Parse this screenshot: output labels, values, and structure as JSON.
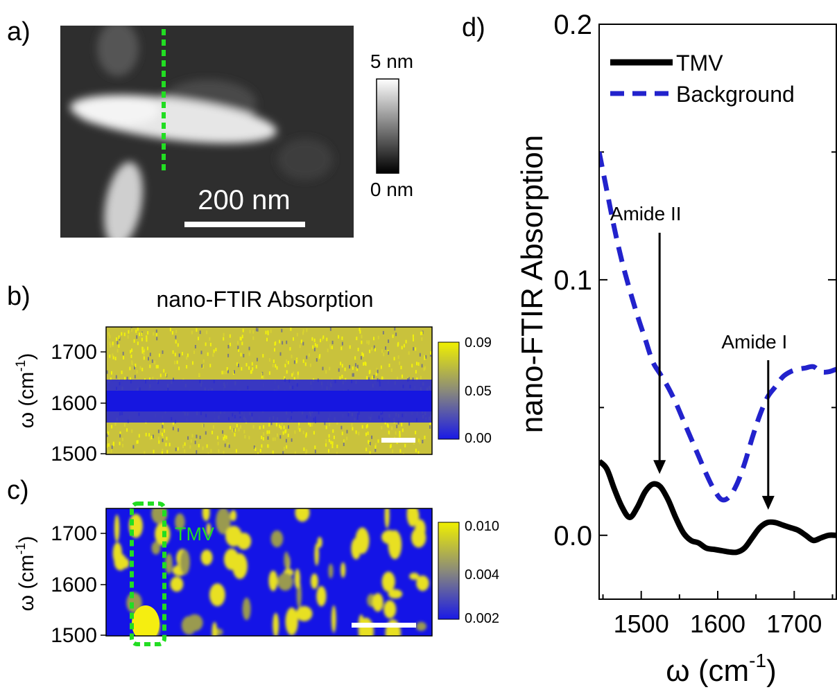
{
  "panel_labels": {
    "a": "a)",
    "b": "b)",
    "c": "c)",
    "d": "d)"
  },
  "panel_a": {
    "scalebar_label": "200 nm",
    "colorbar_top": "5 nm",
    "colorbar_bottom": "0 nm",
    "linecut_color": "#22dd22"
  },
  "panel_b": {
    "title": "nano-FTIR Absorption",
    "ylabel": "ω (cm",
    "ylabel_sup": "-1",
    "ylabel_close": ")",
    "yticks": [
      "1700",
      "1600",
      "1500"
    ],
    "colorbar_ticks": [
      "0.09",
      "0.05",
      "0.00"
    ]
  },
  "panel_c": {
    "ylabel": "ω (cm",
    "ylabel_sup": "-1",
    "ylabel_close": ")",
    "yticks": [
      "1700",
      "1600",
      "1500"
    ],
    "colorbar_ticks": [
      "0.010",
      "0.004",
      "0.002"
    ],
    "region_label": "TMV"
  },
  "colors": {
    "colormap_low": "#1a1ae6",
    "colormap_high": "#f0f000",
    "tmv_line": "#000000",
    "background_line": "#2222cc",
    "highlight": "#22dd22"
  },
  "chart_data": {
    "type": "line",
    "title": "",
    "xlabel": "ω (cm",
    "xlabel_sup": "-1",
    "xlabel_close": ")",
    "ylabel": "nano-FTIR Absorption",
    "xlim": [
      1445,
      1755
    ],
    "ylim": [
      -0.025,
      0.2
    ],
    "xticks": [
      "1500",
      "1600",
      "1700"
    ],
    "yticks": [
      "0.2",
      "0.1",
      "0.0"
    ],
    "legend_position": "top-left",
    "series": [
      {
        "name": "TMV",
        "x": [
          1445,
          1455,
          1465,
          1475,
          1485,
          1495,
          1505,
          1515,
          1525,
          1535,
          1545,
          1555,
          1565,
          1575,
          1585,
          1595,
          1605,
          1615,
          1625,
          1635,
          1645,
          1655,
          1665,
          1675,
          1685,
          1695,
          1705,
          1715,
          1725,
          1735,
          1745,
          1755
        ],
        "y": [
          0.029,
          0.026,
          0.018,
          0.011,
          0.007,
          0.011,
          0.017,
          0.02,
          0.019,
          0.014,
          0.007,
          0.001,
          -0.002,
          -0.003,
          -0.005,
          -0.0055,
          -0.006,
          -0.0065,
          -0.0066,
          -0.005,
          -0.001,
          0.003,
          0.005,
          0.005,
          0.004,
          0.003,
          0.002,
          0.0,
          -0.002,
          -0.001,
          0.0,
          0.0
        ]
      },
      {
        "name": "Background",
        "x": [
          1445,
          1455,
          1465,
          1475,
          1485,
          1495,
          1505,
          1515,
          1525,
          1535,
          1545,
          1555,
          1565,
          1575,
          1585,
          1595,
          1605,
          1615,
          1625,
          1635,
          1645,
          1655,
          1665,
          1675,
          1685,
          1695,
          1705,
          1715,
          1725,
          1735,
          1745,
          1755
        ],
        "y": [
          0.15,
          0.135,
          0.12,
          0.107,
          0.096,
          0.086,
          0.077,
          0.068,
          0.063,
          0.058,
          0.052,
          0.045,
          0.038,
          0.031,
          0.024,
          0.018,
          0.014,
          0.015,
          0.02,
          0.028,
          0.038,
          0.047,
          0.054,
          0.058,
          0.062,
          0.064,
          0.065,
          0.0655,
          0.066,
          0.064,
          0.064,
          0.065
        ]
      }
    ],
    "annotations": [
      {
        "text": "Amide II",
        "x": 1524,
        "y_arrow_tip": 0.024
      },
      {
        "text": "Amide I",
        "x": 1666,
        "y_arrow_tip": 0.01
      }
    ]
  }
}
